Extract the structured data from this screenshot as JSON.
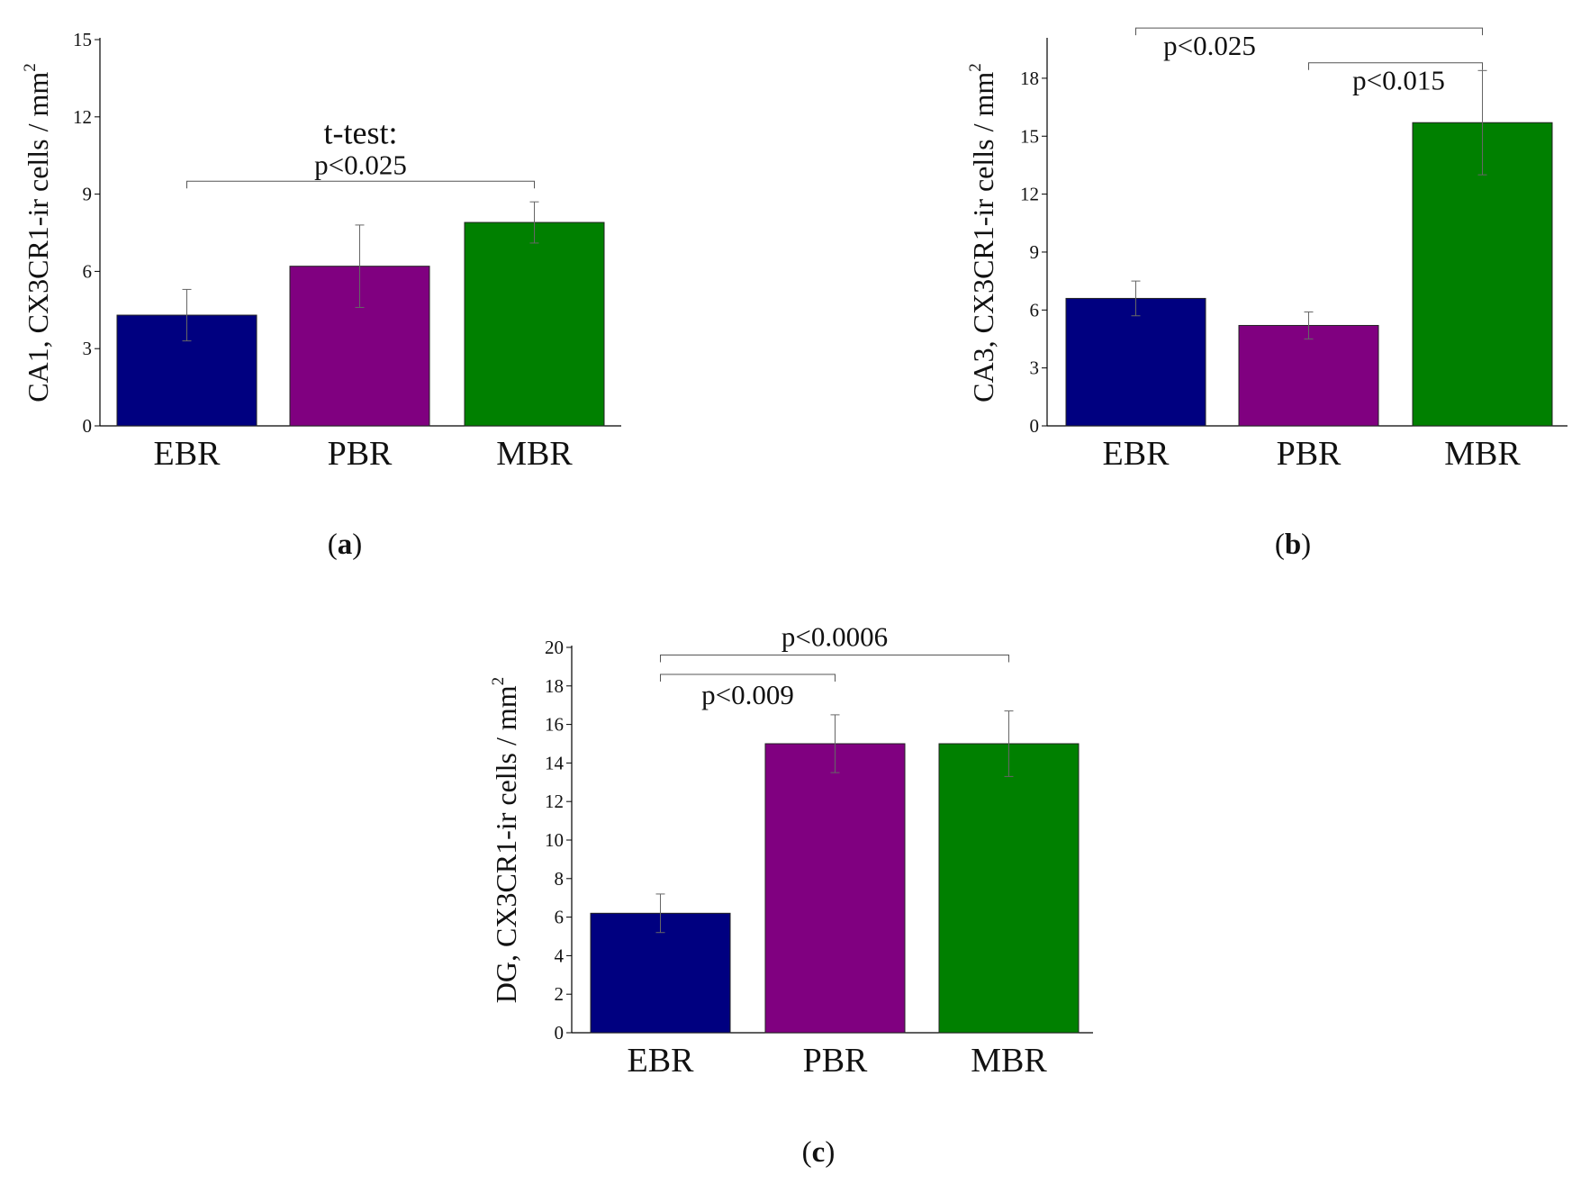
{
  "colors": {
    "EBR": "#000080",
    "PBR": "#800080",
    "MBR": "#008000",
    "axis": "#000000",
    "bracket": "#555555"
  },
  "chart_data": [
    {
      "id": "a",
      "type": "bar",
      "caption_letter": "a",
      "ylabel_main": "CA1, CX3CR1-ir cells / mm",
      "ylabel_sup": "2",
      "categories": [
        "EBR",
        "PBR",
        "MBR"
      ],
      "values": [
        4.3,
        6.2,
        7.9
      ],
      "errors": [
        1.0,
        1.6,
        0.8
      ],
      "ylim": [
        0,
        15
      ],
      "yticks": [
        0,
        3,
        6,
        9,
        12,
        15
      ],
      "annotations": [
        {
          "from": 0,
          "to": 2,
          "level": 9.5,
          "label": "p<0.025",
          "header": "t-test:"
        }
      ]
    },
    {
      "id": "b",
      "type": "bar",
      "caption_letter": "b",
      "ylabel_main": "CA3, CX3CR1-ir cells / mm",
      "ylabel_sup": "2",
      "categories": [
        "EBR",
        "PBR",
        "MBR"
      ],
      "values": [
        6.6,
        5.2,
        15.7
      ],
      "errors": [
        0.9,
        0.7,
        2.7
      ],
      "ylim": [
        0,
        20
      ],
      "yticks": [
        0,
        3,
        6,
        9,
        12,
        15,
        18
      ],
      "annotations": [
        {
          "from": 0,
          "to": 2,
          "level": 20.6,
          "label": "p<0.025"
        },
        {
          "from": 1,
          "to": 2,
          "level": 18.8,
          "label": "p<0.015"
        }
      ]
    },
    {
      "id": "c",
      "type": "bar",
      "caption_letter": "c",
      "ylabel_main": "DG, CX3CR1-ir cells / mm",
      "ylabel_sup": "2",
      "categories": [
        "EBR",
        "PBR",
        "MBR"
      ],
      "values": [
        6.2,
        15.0,
        15.0
      ],
      "errors": [
        1.0,
        1.5,
        1.7
      ],
      "ylim": [
        0,
        20
      ],
      "yticks": [
        0,
        2,
        4,
        6,
        8,
        10,
        12,
        14,
        16,
        18,
        20
      ],
      "annotations": [
        {
          "from": 0,
          "to": 2,
          "level": 19.6,
          "label": "p<0.0006"
        },
        {
          "from": 0,
          "to": 1,
          "level": 18.6,
          "label": "p<0.009"
        }
      ]
    }
  ]
}
